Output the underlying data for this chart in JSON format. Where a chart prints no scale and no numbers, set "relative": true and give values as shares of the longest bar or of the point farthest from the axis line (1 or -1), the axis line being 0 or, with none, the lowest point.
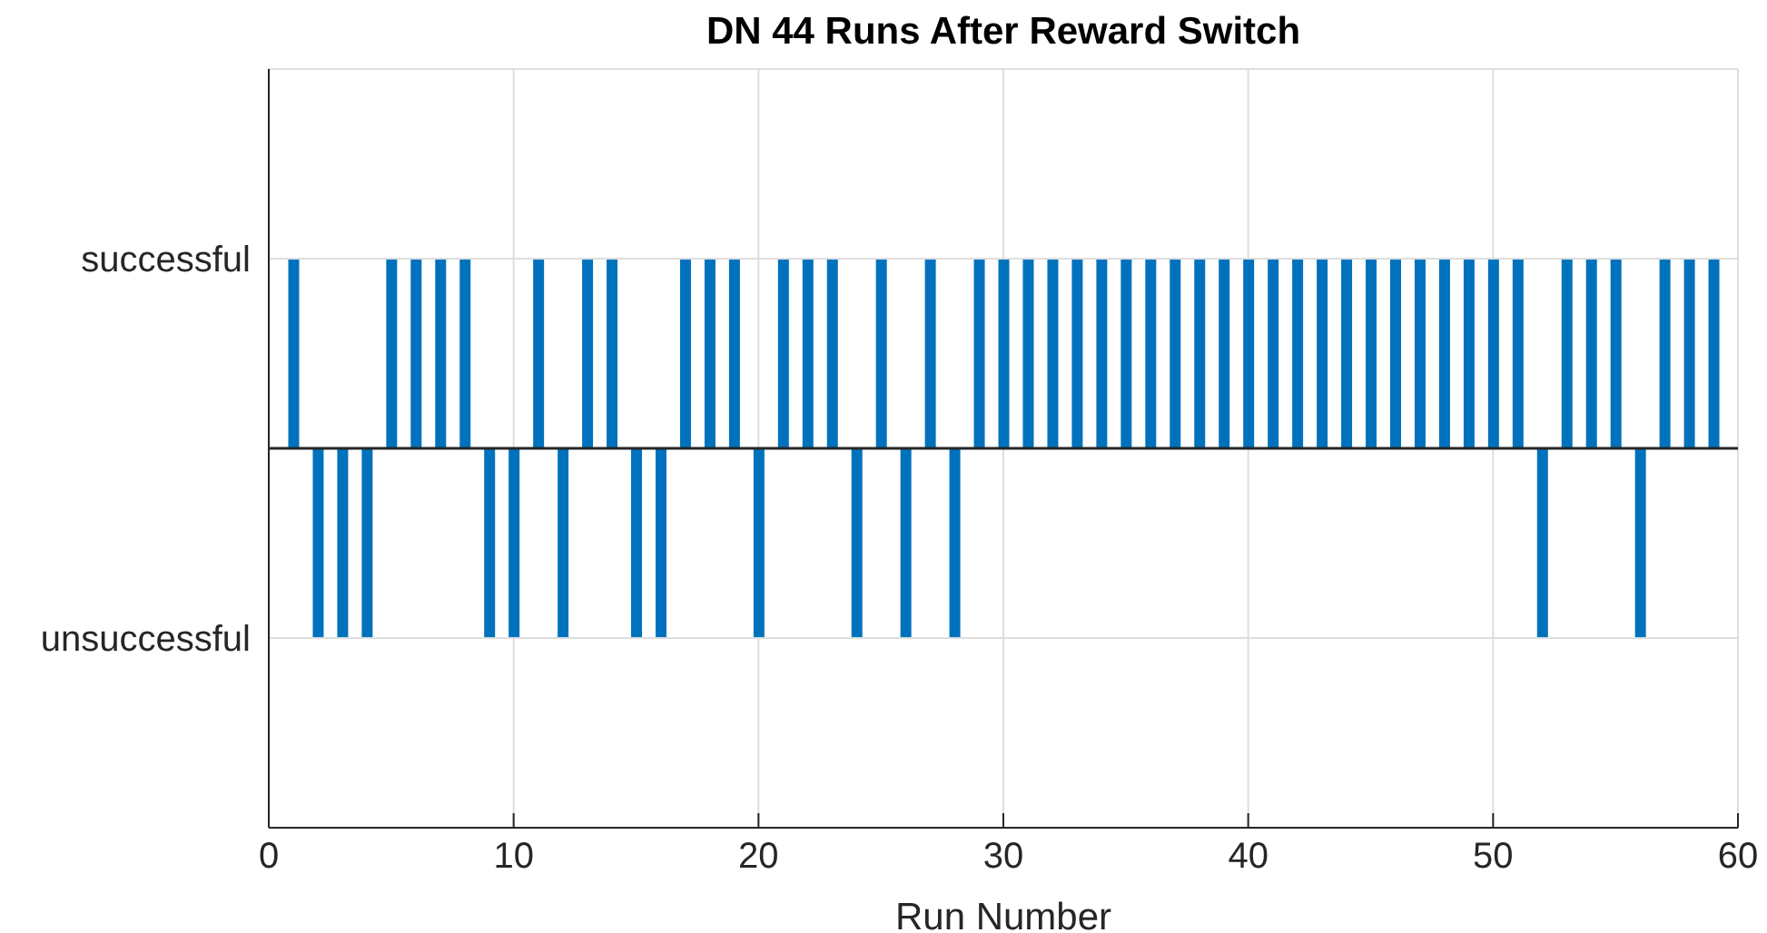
{
  "chart_data": {
    "type": "bar",
    "title": "DN 44 Runs After Reward Switch",
    "xlabel": "Run Number",
    "x": [
      1,
      2,
      3,
      4,
      5,
      6,
      7,
      8,
      9,
      10,
      11,
      12,
      13,
      14,
      15,
      16,
      17,
      18,
      19,
      20,
      21,
      22,
      23,
      24,
      25,
      26,
      27,
      28,
      29,
      30,
      31,
      32,
      33,
      34,
      35,
      36,
      37,
      38,
      39,
      40,
      41,
      42,
      43,
      44,
      45,
      46,
      47,
      48,
      49,
      50,
      51,
      52,
      53,
      54,
      55,
      56,
      57,
      58,
      59
    ],
    "values": [
      1,
      -1,
      -1,
      -1,
      1,
      1,
      1,
      1,
      -1,
      -1,
      1,
      -1,
      1,
      1,
      -1,
      -1,
      1,
      1,
      1,
      -1,
      1,
      1,
      1,
      -1,
      1,
      -1,
      1,
      -1,
      1,
      1,
      1,
      1,
      1,
      1,
      1,
      1,
      1,
      1,
      1,
      1,
      1,
      1,
      1,
      1,
      1,
      1,
      1,
      1,
      1,
      1,
      1,
      -1,
      1,
      1,
      1,
      -1,
      1,
      1,
      1
    ],
    "color": "#0072bd",
    "xlim": [
      0,
      60
    ],
    "xticks": [
      0,
      10,
      20,
      30,
      40,
      50,
      60
    ],
    "relative": true,
    "annotations": [
      "successful",
      "unsuccessful"
    ],
    "ref_lines": [
      {
        "axis": "y",
        "value": 0,
        "color": "#262626"
      }
    ],
    "grid": true
  }
}
